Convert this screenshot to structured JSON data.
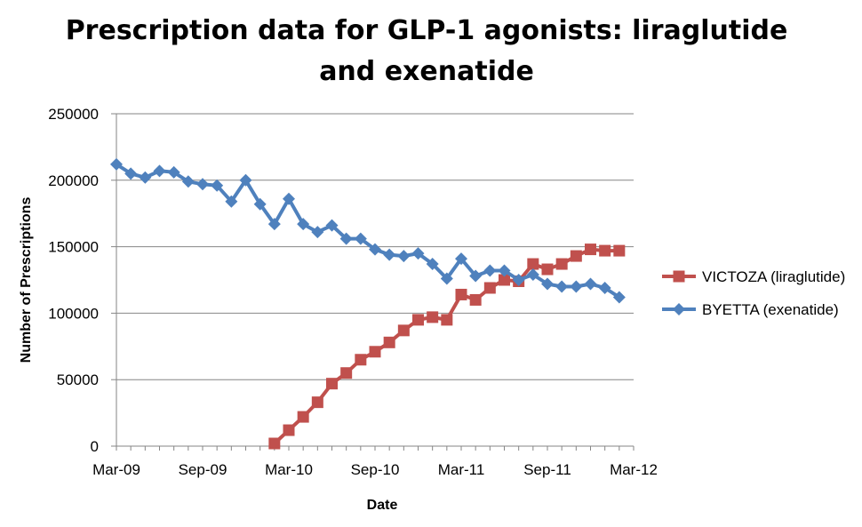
{
  "title_line1": "Prescription data for GLP-1 agonists: liraglutide",
  "title_line2": "and exenatide",
  "chart_data": {
    "type": "line",
    "title": "Prescription data for GLP-1 agonists: liraglutide and exenatide",
    "xlabel": "Date",
    "ylabel": "Number of Prescriptions",
    "ylim": [
      0,
      250000
    ],
    "y_ticks": [
      "0",
      "50000",
      "100000",
      "150000",
      "200000",
      "250000"
    ],
    "x_ticks": [
      "Mar-09",
      "Sep-09",
      "Mar-10",
      "Sep-10",
      "Mar-11",
      "Sep-11",
      "Mar-12"
    ],
    "grid": "horizontal",
    "legend_position": "right",
    "x": [
      "Mar-09",
      "Apr-09",
      "May-09",
      "Jun-09",
      "Jul-09",
      "Aug-09",
      "Sep-09",
      "Oct-09",
      "Nov-09",
      "Dec-09",
      "Jan-10",
      "Feb-10",
      "Mar-10",
      "Apr-10",
      "May-10",
      "Jun-10",
      "Jul-10",
      "Aug-10",
      "Sep-10",
      "Oct-10",
      "Nov-10",
      "Dec-10",
      "Jan-11",
      "Feb-11",
      "Mar-11",
      "Apr-11",
      "May-11",
      "Jun-11",
      "Jul-11",
      "Aug-11",
      "Sep-11",
      "Oct-11",
      "Nov-11",
      "Dec-11",
      "Jan-12",
      "Feb-12",
      "Mar-12"
    ],
    "series": [
      {
        "name": "VICTOZA (liraglutide)",
        "color": "#c0504d",
        "marker": "square",
        "values": [
          null,
          null,
          null,
          null,
          null,
          null,
          null,
          null,
          null,
          null,
          null,
          2000,
          12000,
          22000,
          33000,
          47000,
          55000,
          65000,
          71000,
          78000,
          87000,
          95000,
          97000,
          95000,
          114000,
          110000,
          119000,
          125000,
          124000,
          137000,
          133000,
          137000,
          143000,
          148000,
          147000,
          147000,
          null
        ]
      },
      {
        "name": "BYETTA (exenatide)",
        "color": "#4f81bd",
        "marker": "diamond",
        "values": [
          212000,
          205000,
          202000,
          207000,
          206000,
          199000,
          197000,
          196000,
          184000,
          200000,
          182000,
          167000,
          186000,
          167000,
          161000,
          166000,
          156000,
          156000,
          148000,
          144000,
          143000,
          145000,
          137000,
          126000,
          141000,
          128000,
          132000,
          132000,
          125000,
          129000,
          122000,
          120000,
          120000,
          122000,
          119000,
          112000,
          null
        ]
      }
    ]
  }
}
